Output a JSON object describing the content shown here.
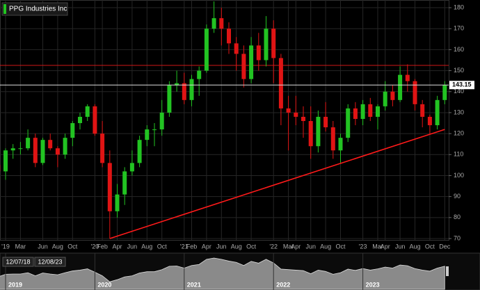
{
  "chart_data": {
    "type": "candlestick",
    "title": "PPG Industries Inc",
    "x": [
      "2018-12",
      "2019-01",
      "2019-02",
      "2019-03",
      "2019-04",
      "2019-05",
      "2019-06",
      "2019-07",
      "2019-08",
      "2019-09",
      "2019-10",
      "2019-11",
      "2019-12",
      "2020-01",
      "2020-02",
      "2020-03",
      "2020-04",
      "2020-05",
      "2020-06",
      "2020-07",
      "2020-08",
      "2020-09",
      "2020-10",
      "2020-11",
      "2020-12",
      "2021-01",
      "2021-02",
      "2021-03",
      "2021-04",
      "2021-05",
      "2021-06",
      "2021-07",
      "2021-08",
      "2021-09",
      "2021-10",
      "2021-11",
      "2021-12",
      "2022-01",
      "2022-02",
      "2022-03",
      "2022-04",
      "2022-05",
      "2022-06",
      "2022-07",
      "2022-08",
      "2022-09",
      "2022-10",
      "2022-11",
      "2022-12",
      "2023-01",
      "2023-02",
      "2023-03",
      "2023-04",
      "2023-05",
      "2023-06",
      "2023-07",
      "2023-08",
      "2023-09",
      "2023-10",
      "2023-11",
      "2023-12"
    ],
    "open": [
      105,
      102,
      112,
      113,
      113,
      118,
      106,
      117,
      113,
      110,
      118,
      125,
      128,
      133,
      120,
      106,
      83,
      91,
      102,
      106,
      117,
      122,
      122,
      130,
      143,
      144,
      136,
      146,
      150,
      170,
      175,
      170,
      163,
      158,
      146,
      162,
      155,
      170,
      156,
      132,
      130,
      128,
      126,
      114,
      128,
      123,
      112,
      118,
      132,
      127,
      134,
      128,
      133,
      140,
      136,
      148,
      145,
      134,
      128,
      124,
      136
    ],
    "high": [
      108,
      113,
      115,
      116,
      122,
      120,
      118,
      120,
      114,
      120,
      126,
      130,
      134,
      134,
      126,
      112,
      96,
      104,
      112,
      119,
      124,
      125,
      136,
      145,
      150,
      149,
      148,
      152,
      172,
      183,
      180,
      173,
      166,
      162,
      166,
      168,
      176,
      174,
      158,
      138,
      138,
      133,
      133,
      131,
      135,
      126,
      120,
      134,
      135,
      136,
      137,
      134,
      145,
      143,
      152,
      153,
      146,
      136,
      129,
      138,
      145
    ],
    "low": [
      96,
      98,
      108,
      110,
      112,
      104,
      105,
      112,
      104,
      108,
      114,
      122,
      126,
      119,
      104,
      70,
      80,
      86,
      100,
      104,
      114,
      114,
      119,
      128,
      140,
      134,
      133,
      138,
      149,
      168,
      162,
      158,
      150,
      142,
      144,
      150,
      152,
      144,
      124,
      112,
      124,
      118,
      108,
      111,
      121,
      108,
      106,
      116,
      124,
      124,
      126,
      122,
      131,
      133,
      135,
      140,
      131,
      123,
      120,
      122,
      134
    ],
    "close": [
      102,
      112,
      113,
      113,
      118,
      106,
      117,
      113,
      110,
      118,
      125,
      128,
      133,
      120,
      106,
      83,
      91,
      102,
      106,
      117,
      122,
      122,
      130,
      143,
      144,
      136,
      146,
      150,
      170,
      175,
      170,
      163,
      158,
      146,
      162,
      155,
      170,
      156,
      132,
      130,
      128,
      126,
      114,
      128,
      123,
      112,
      118,
      132,
      127,
      134,
      128,
      133,
      140,
      136,
      148,
      145,
      134,
      128,
      124,
      136,
      143.15
    ],
    "up_color": "#22c322",
    "down_color": "#e01414",
    "ylim": [
      70,
      183
    ],
    "yticks": [
      70,
      80,
      90,
      100,
      110,
      120,
      130,
      140,
      150,
      160,
      170,
      180
    ],
    "xticks": [
      {
        "value": "2019-01",
        "label": "'19"
      },
      {
        "value": "2019-03",
        "label": "Mar"
      },
      {
        "value": "2019-06",
        "label": "Jun"
      },
      {
        "value": "2019-08",
        "label": "Aug"
      },
      {
        "value": "2019-10",
        "label": "Oct"
      },
      {
        "value": "2020-01",
        "label": "'20"
      },
      {
        "value": "2020-02",
        "label": "Feb"
      },
      {
        "value": "2020-04",
        "label": "Apr"
      },
      {
        "value": "2020-06",
        "label": "Jun"
      },
      {
        "value": "2020-08",
        "label": "Aug"
      },
      {
        "value": "2020-10",
        "label": "Oct"
      },
      {
        "value": "2021-01",
        "label": "'21"
      },
      {
        "value": "2021-02",
        "label": "Feb"
      },
      {
        "value": "2021-04",
        "label": "Apr"
      },
      {
        "value": "2021-06",
        "label": "Jun"
      },
      {
        "value": "2021-08",
        "label": "Aug"
      },
      {
        "value": "2021-10",
        "label": "Oct"
      },
      {
        "value": "2022-01",
        "label": "'22"
      },
      {
        "value": "2022-03",
        "label": "Mar"
      },
      {
        "value": "2022-04",
        "label": "Apr"
      },
      {
        "value": "2022-06",
        "label": "Jun"
      },
      {
        "value": "2022-08",
        "label": "Aug"
      },
      {
        "value": "2022-10",
        "label": "Oct"
      },
      {
        "value": "2023-01",
        "label": "'23"
      },
      {
        "value": "2023-03",
        "label": "Mar"
      },
      {
        "value": "2023-04",
        "label": "Apr"
      },
      {
        "value": "2023-06",
        "label": "Jun"
      },
      {
        "value": "2023-08",
        "label": "Aug"
      },
      {
        "value": "2023-10",
        "label": "Oct"
      },
      {
        "value": "2023-12",
        "label": "Dec"
      }
    ],
    "grid": true,
    "last_price": 143.15,
    "resistance_line": 152.5,
    "resistance_color": "#d01818",
    "trend_line": {
      "x": [
        "2020-03",
        "2023-12"
      ],
      "y": [
        70,
        122
      ],
      "color": "#ff1a1a"
    },
    "range_start": "12/07/18",
    "range_end": "12/08/23",
    "navigator_labels": [
      {
        "value": "2019-01",
        "label": "2019"
      },
      {
        "value": "2020-01",
        "label": "2020"
      },
      {
        "value": "2021-01",
        "label": "2021"
      },
      {
        "value": "2022-01",
        "label": "2022"
      },
      {
        "value": "2023-01",
        "label": "2023"
      }
    ]
  }
}
